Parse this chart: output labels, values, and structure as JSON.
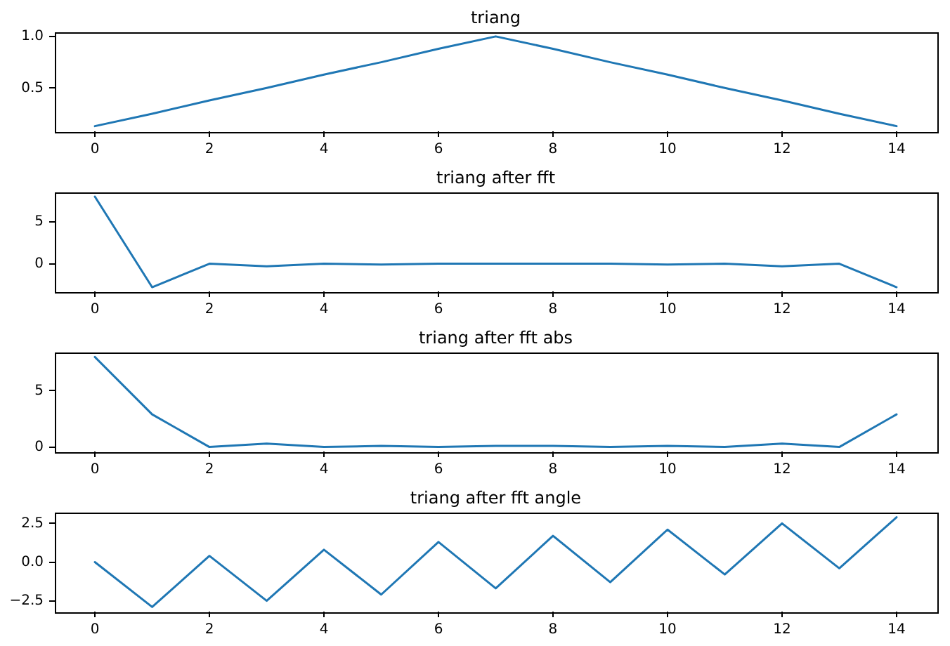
{
  "chart_data": [
    {
      "type": "line",
      "title": "triang",
      "x": [
        0,
        1,
        2,
        3,
        4,
        5,
        6,
        7,
        8,
        9,
        10,
        11,
        12,
        13,
        14
      ],
      "series": [
        {
          "color": "#1f77b4",
          "values": [
            0.13,
            0.25,
            0.38,
            0.5,
            0.63,
            0.75,
            0.88,
            1.0,
            0.88,
            0.75,
            0.63,
            0.5,
            0.38,
            0.25,
            0.13
          ]
        }
      ],
      "xlim": [
        -0.7,
        14.7
      ],
      "xticks": [
        0,
        2,
        4,
        6,
        8,
        10,
        12,
        14
      ],
      "ylim": [
        0.08,
        1.04
      ],
      "yticks": [
        0.5,
        {
          "value": 1,
          "label": "1.0"
        }
      ],
      "grid": false,
      "legend": false
    },
    {
      "type": "line",
      "title": "triang after fft",
      "x": [
        0,
        1,
        2,
        3,
        4,
        5,
        6,
        7,
        8,
        9,
        10,
        11,
        12,
        13,
        14
      ],
      "series": [
        {
          "color": "#1f77b4",
          "values": [
            8,
            -2.8,
            0,
            -0.3,
            0,
            -0.1,
            0,
            0,
            0,
            0,
            -0.1,
            0,
            -0.3,
            0,
            -2.8
          ]
        }
      ],
      "xlim": [
        -0.7,
        14.7
      ],
      "xticks": [
        0,
        2,
        4,
        6,
        8,
        10,
        12,
        14
      ],
      "ylim": [
        -3.3,
        8.5
      ],
      "yticks": [
        0,
        5
      ],
      "grid": false,
      "legend": false
    },
    {
      "type": "line",
      "title": "triang after fft abs",
      "x": [
        0,
        1,
        2,
        3,
        4,
        5,
        6,
        7,
        8,
        9,
        10,
        11,
        12,
        13,
        14
      ],
      "series": [
        {
          "color": "#1f77b4",
          "values": [
            8,
            2.9,
            0,
            0.3,
            0,
            0.1,
            0,
            0.1,
            0.1,
            0,
            0.1,
            0,
            0.3,
            0,
            2.9
          ]
        }
      ],
      "xlim": [
        -0.7,
        14.7
      ],
      "xticks": [
        0,
        2,
        4,
        6,
        8,
        10,
        12,
        14
      ],
      "ylim": [
        -0.4,
        8.4
      ],
      "yticks": [
        0,
        5
      ],
      "grid": false,
      "legend": false
    },
    {
      "type": "line",
      "title": "triang after fft angle",
      "x": [
        0,
        1,
        2,
        3,
        4,
        5,
        6,
        7,
        8,
        9,
        10,
        11,
        12,
        13,
        14
      ],
      "series": [
        {
          "color": "#1f77b4",
          "values": [
            0,
            -2.9,
            0.4,
            -2.5,
            0.8,
            -2.1,
            1.3,
            -1.7,
            1.7,
            -1.3,
            2.1,
            -0.8,
            2.5,
            -0.4,
            2.9
          ]
        }
      ],
      "xlim": [
        -0.7,
        14.7
      ],
      "xticks": [
        0,
        2,
        4,
        6,
        8,
        10,
        12,
        14
      ],
      "ylim": [
        -3.2,
        3.2
      ],
      "yticks": [
        {
          "value": -2.5,
          "label": "−2.5"
        },
        {
          "value": 0,
          "label": "0.0"
        },
        2.5
      ],
      "grid": false,
      "legend": false
    }
  ]
}
